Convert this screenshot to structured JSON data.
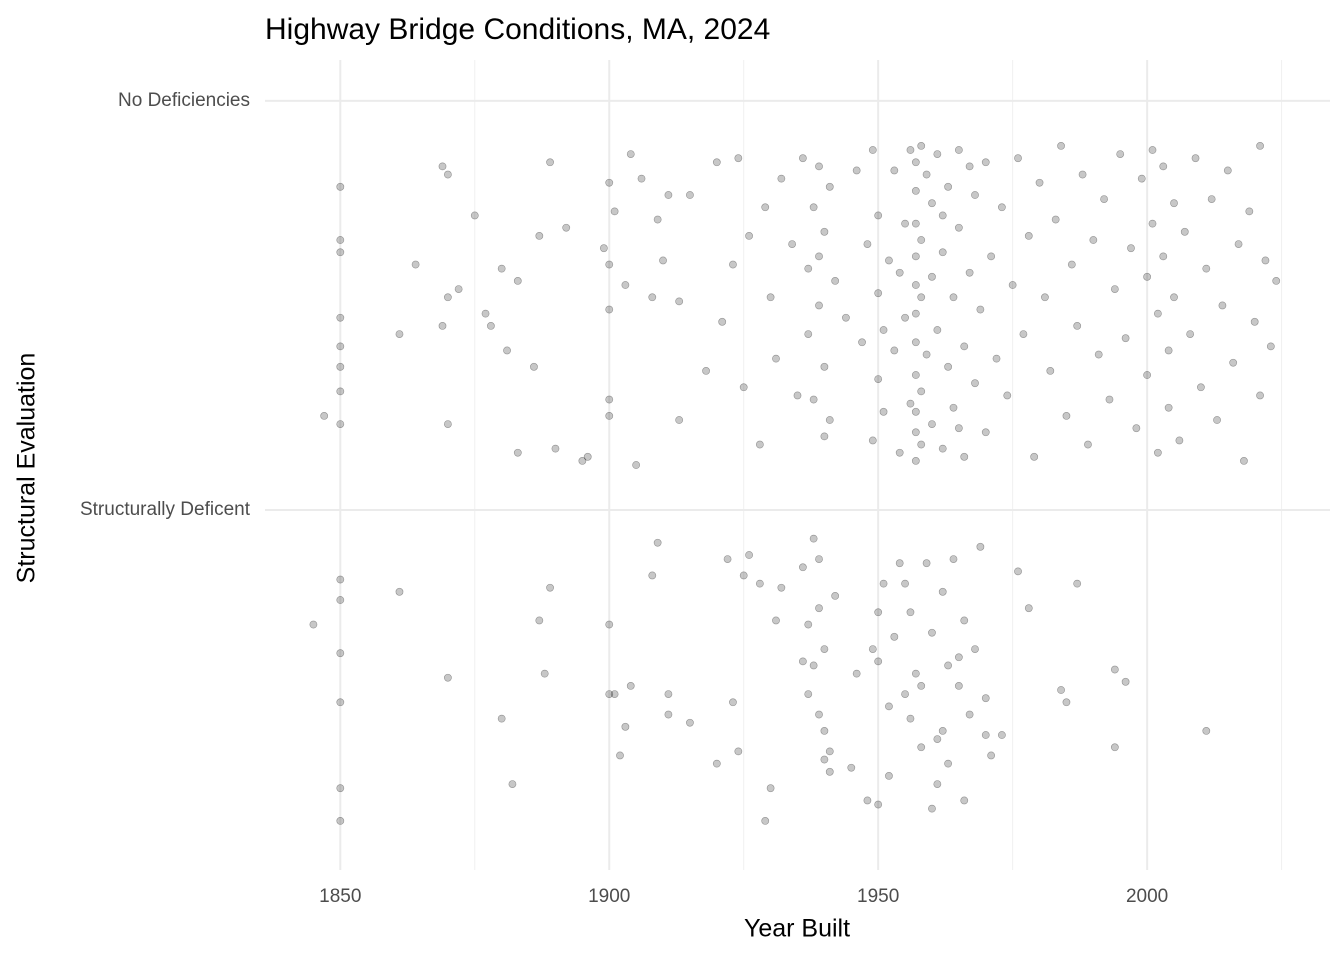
{
  "chart_data": {
    "type": "scatter",
    "title": "Highway Bridge Conditions, MA, 2024",
    "x_label": "Year Built",
    "y_label": "Structural Evaluation",
    "x": [
      1845,
      1850,
      1850,
      1850,
      1850,
      1850,
      1850,
      1861,
      1870,
      1882,
      1880,
      1887,
      1888,
      1889,
      1900,
      1900,
      1901,
      1903,
      1902,
      1904,
      1908,
      1909,
      1911,
      1911,
      1915,
      1920,
      1922,
      1923,
      1924,
      1925,
      1926,
      1928,
      1929,
      1930,
      1931,
      1932,
      1936,
      1936,
      1937,
      1937,
      1938,
      1939,
      1939,
      1940,
      1940,
      1940,
      1941,
      1942,
      1945,
      1946,
      1948,
      1949,
      1950,
      1950,
      1950,
      1951,
      1952,
      1953,
      1954,
      1955,
      1956,
      1956,
      1957,
      1958,
      1959,
      1960,
      1961,
      1961,
      1962,
      1963,
      1963,
      1964,
      1965,
      1966,
      1966,
      1967,
      1968,
      1969,
      1970,
      1971,
      1973,
      1976,
      1978,
      1984,
      1985,
      1987,
      1994,
      1994,
      1996,
      2011,
      1958,
      1960,
      1962,
      1939,
      1938,
      1952,
      1965,
      1970,
      1941,
      1955,
      1847,
      1850,
      1850,
      1850,
      1850,
      1850,
      1850,
      1850,
      1850,
      1861,
      1864,
      1869,
      1869,
      1870,
      1870,
      1870,
      1872,
      1875,
      1877,
      1878,
      1880,
      1881,
      1883,
      1883,
      1886,
      1887,
      1889,
      1890,
      1892,
      1895,
      1896,
      1899,
      1900,
      1900,
      1900,
      1900,
      1900,
      1901,
      1903,
      1904,
      1905,
      1906,
      1908,
      1909,
      1910,
      1911,
      1913,
      1913,
      1915,
      1918,
      1920,
      1921,
      1923,
      1924,
      1925,
      1926,
      1928,
      1929,
      1930,
      1931,
      1932,
      1934,
      1935,
      1936,
      1937,
      1937,
      1938,
      1938,
      1939,
      1939,
      1940,
      1940,
      1940,
      1941,
      1941,
      1942,
      1944,
      1946,
      1947,
      1948,
      1949,
      1949,
      1950,
      1950,
      1950,
      1951,
      1952,
      1953,
      1953,
      1954,
      1955,
      1955,
      1956,
      1956,
      1957,
      1957,
      1957,
      1957,
      1957,
      1957,
      1957,
      1957,
      1957,
      1957,
      1958,
      1958,
      1959,
      1959,
      1960,
      1960,
      1960,
      1961,
      1961,
      1962,
      1962,
      1963,
      1963,
      1964,
      1964,
      1965,
      1965,
      1966,
      1966,
      1967,
      1968,
      1968,
      1969,
      1970,
      1970,
      1971,
      1972,
      1973,
      1974,
      1975,
      1976,
      1977,
      1978,
      1979,
      1980,
      1981,
      1982,
      1983,
      1984,
      1985,
      1986,
      1987,
      1988,
      1989,
      1990,
      1991,
      1992,
      1993,
      1994,
      1995,
      1996,
      1997,
      1998,
      1999,
      2000,
      2000,
      2001,
      2001,
      2002,
      2002,
      2003,
      2003,
      2004,
      2004,
      2005,
      2005,
      2006,
      2007,
      2008,
      2009,
      2010,
      2011,
      2012,
      2013,
      2014,
      2015,
      2016,
      2017,
      2018,
      2019,
      2020,
      2021,
      2021,
      2022,
      2023,
      2024,
      1958,
      1958,
      1957,
      1958,
      1962,
      1939,
      1954,
      1951,
      1965,
      1967
    ],
    "values": [
      0.72,
      0.83,
      0.78,
      0.65,
      0.53,
      0.24,
      0.32,
      0.8,
      0.59,
      0.33,
      0.49,
      0.73,
      0.6,
      0.81,
      0.72,
      0.55,
      0.55,
      0.47,
      0.4,
      0.57,
      0.84,
      0.92,
      0.55,
      0.5,
      0.48,
      0.38,
      0.88,
      0.53,
      0.41,
      0.84,
      0.89,
      0.82,
      0.24,
      0.32,
      0.73,
      0.81,
      0.63,
      0.86,
      0.72,
      0.55,
      0.93,
      0.88,
      0.76,
      0.66,
      0.46,
      0.39,
      0.41,
      0.79,
      0.37,
      0.6,
      0.29,
      0.66,
      0.75,
      0.28,
      0.63,
      0.82,
      0.52,
      0.69,
      0.87,
      0.55,
      0.49,
      0.75,
      0.6,
      0.42,
      0.87,
      0.7,
      0.44,
      0.33,
      0.8,
      0.62,
      0.38,
      0.88,
      0.57,
      0.73,
      0.29,
      0.5,
      0.66,
      0.91,
      0.54,
      0.4,
      0.45,
      0.85,
      0.76,
      0.56,
      0.53,
      0.82,
      0.61,
      0.42,
      0.58,
      0.46,
      0.57,
      0.27,
      0.46,
      0.5,
      0.62,
      0.35,
      0.64,
      0.45,
      0.36,
      0.82,
      1.23,
      1.79,
      1.66,
      1.63,
      1.47,
      1.4,
      1.35,
      1.29,
      1.21,
      1.43,
      1.6,
      1.84,
      1.45,
      1.82,
      1.52,
      1.21,
      1.54,
      1.72,
      1.48,
      1.45,
      1.59,
      1.39,
      1.14,
      1.56,
      1.35,
      1.67,
      1.85,
      1.15,
      1.69,
      1.12,
      1.13,
      1.64,
      1.8,
      1.6,
      1.49,
      1.27,
      1.23,
      1.73,
      1.55,
      1.87,
      1.11,
      1.81,
      1.52,
      1.71,
      1.61,
      1.77,
      1.51,
      1.22,
      1.77,
      1.34,
      1.85,
      1.46,
      1.6,
      1.86,
      1.3,
      1.67,
      1.16,
      1.74,
      1.52,
      1.37,
      1.81,
      1.65,
      1.28,
      1.86,
      1.59,
      1.43,
      1.74,
      1.27,
      1.84,
      1.5,
      1.68,
      1.35,
      1.18,
      1.79,
      1.22,
      1.56,
      1.47,
      1.83,
      1.41,
      1.65,
      1.17,
      1.88,
      1.72,
      1.53,
      1.32,
      1.24,
      1.61,
      1.83,
      1.39,
      1.14,
      1.7,
      1.47,
      1.88,
      1.26,
      1.78,
      1.62,
      1.55,
      1.41,
      1.33,
      1.19,
      1.12,
      1.85,
      1.7,
      1.48,
      1.66,
      1.29,
      1.82,
      1.38,
      1.75,
      1.57,
      1.21,
      1.87,
      1.44,
      1.63,
      1.15,
      1.79,
      1.35,
      1.52,
      1.25,
      1.88,
      1.69,
      1.4,
      1.13,
      1.58,
      1.77,
      1.31,
      1.49,
      1.85,
      1.19,
      1.62,
      1.37,
      1.74,
      1.28,
      1.55,
      1.86,
      1.43,
      1.67,
      1.13,
      1.8,
      1.52,
      1.34,
      1.71,
      1.89,
      1.23,
      1.6,
      1.45,
      1.82,
      1.16,
      1.66,
      1.38,
      1.76,
      1.27,
      1.54,
      1.87,
      1.42,
      1.64,
      1.2,
      1.81,
      1.57,
      1.33,
      1.88,
      1.7,
      1.48,
      1.14,
      1.84,
      1.62,
      1.39,
      1.25,
      1.75,
      1.52,
      1.17,
      1.68,
      1.43,
      1.86,
      1.3,
      1.59,
      1.76,
      1.22,
      1.5,
      1.83,
      1.36,
      1.65,
      1.12,
      1.73,
      1.46,
      1.89,
      1.28,
      1.61,
      1.4,
      1.56,
      1.89,
      1.52,
      1.24,
      1.16,
      1.72,
      1.62,
      1.58,
      1.44,
      1.2,
      1.84
    ],
    "color": "#000000",
    "xlim": [
      1836,
      2034
    ],
    "xticks": [
      1850,
      1900,
      1950,
      2000
    ],
    "ylim": [
      0.12,
      2.1
    ],
    "yticks": [
      {
        "value": 1,
        "label": "Structurally Deficent"
      },
      {
        "value": 2,
        "label": "No Deficiencies"
      }
    ],
    "grid": true
  }
}
